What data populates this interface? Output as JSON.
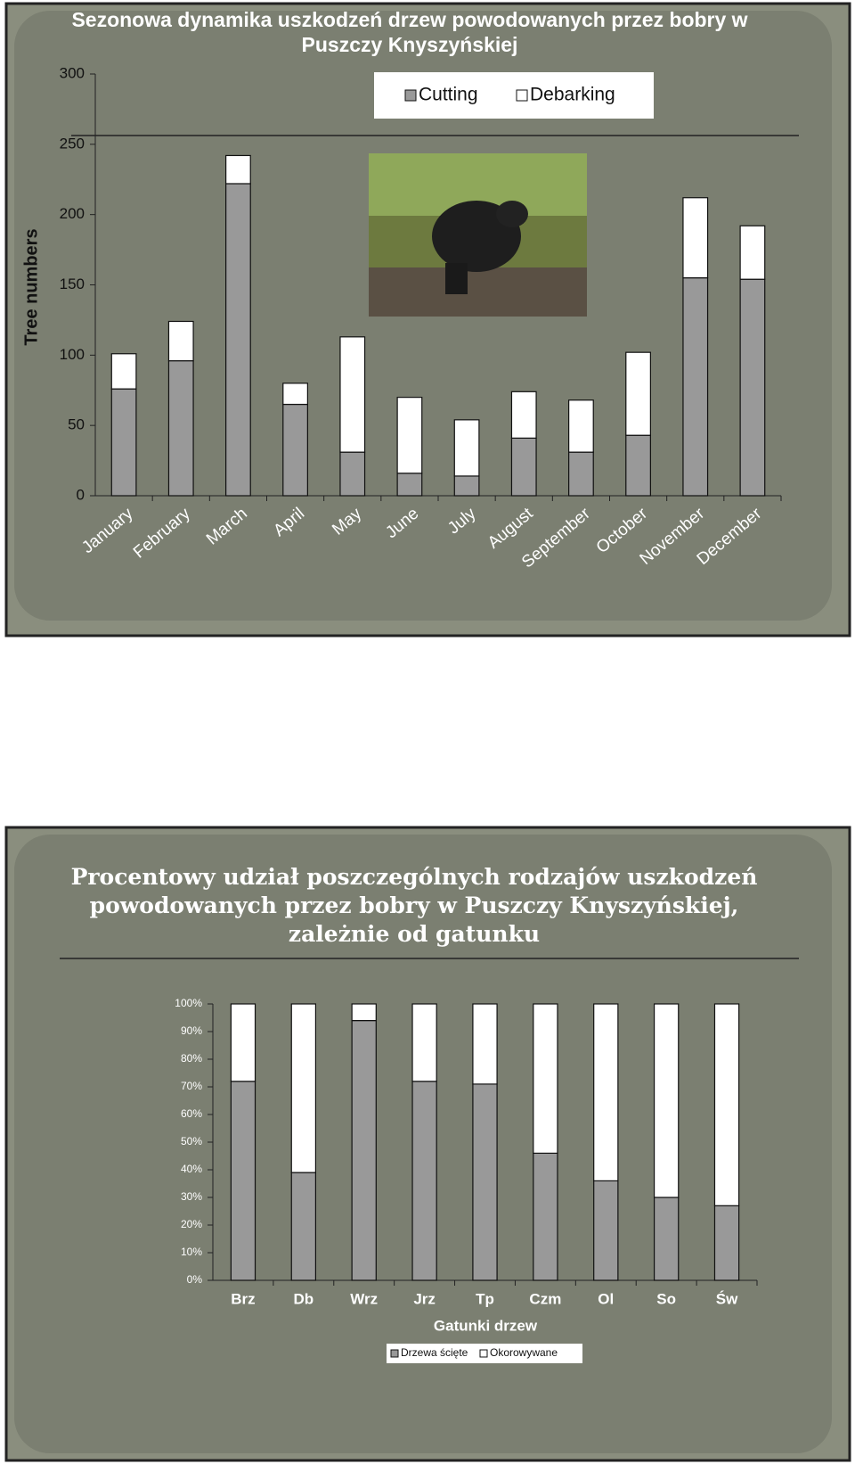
{
  "chart_data": [
    {
      "type": "stacked-bar",
      "title": "Sezonowa dynamika uszkodzeń drzew powodowanych przez bobry w Puszczy Knyszyńskiej",
      "y_label": "Tree numbers",
      "categories": [
        "January",
        "February",
        "March",
        "April",
        "May",
        "June",
        "July",
        "August",
        "September",
        "October",
        "November",
        "December"
      ],
      "series": [
        {
          "name": "Cutting",
          "color": "#999999",
          "values": [
            76,
            96,
            222,
            65,
            31,
            16,
            14,
            41,
            31,
            43,
            155,
            154
          ]
        },
        {
          "name": "Debarking",
          "color": "#ffffff",
          "values": [
            25,
            28,
            20,
            15,
            82,
            54,
            40,
            33,
            37,
            59,
            57,
            38
          ]
        }
      ],
      "ylim": [
        0,
        300
      ],
      "yticks": [
        0,
        50,
        100,
        150,
        200,
        250,
        300
      ],
      "grid": false
    },
    {
      "type": "stacked-bar",
      "title": "Procentowy udział poszczególnych rodzajów uszkodzeń powodowanych przez bobry w Puszczy Knyszyńskiej, zależnie od gatunku",
      "x_label": "Gatunki drzew",
      "categories": [
        "Brz",
        "Db",
        "Wrz",
        "Jrz",
        "Tp",
        "Czm",
        "Ol",
        "So",
        "Św"
      ],
      "series": [
        {
          "name": "Drzewa ścięte",
          "color": "#999999",
          "values": [
            72,
            39,
            94,
            72,
            71,
            46,
            36,
            30,
            27
          ]
        },
        {
          "name": "Okorowywane",
          "color": "#ffffff",
          "values": [
            28,
            61,
            6,
            28,
            29,
            54,
            64,
            70,
            73
          ]
        }
      ],
      "ylim": [
        0,
        100
      ],
      "yticks": [
        {
          "value": 0,
          "label": "0%"
        },
        {
          "value": 10,
          "label": "10%"
        },
        {
          "value": 20,
          "label": "20%"
        },
        {
          "value": 30,
          "label": "30%"
        },
        {
          "value": 40,
          "label": "40%"
        },
        {
          "value": 50,
          "label": "50%"
        },
        {
          "value": 60,
          "label": "60%"
        },
        {
          "value": 70,
          "label": "70%"
        },
        {
          "value": 80,
          "label": "80%"
        },
        {
          "value": 90,
          "label": "90%"
        },
        {
          "value": 100,
          "label": "100%"
        }
      ],
      "grid": false
    }
  ]
}
